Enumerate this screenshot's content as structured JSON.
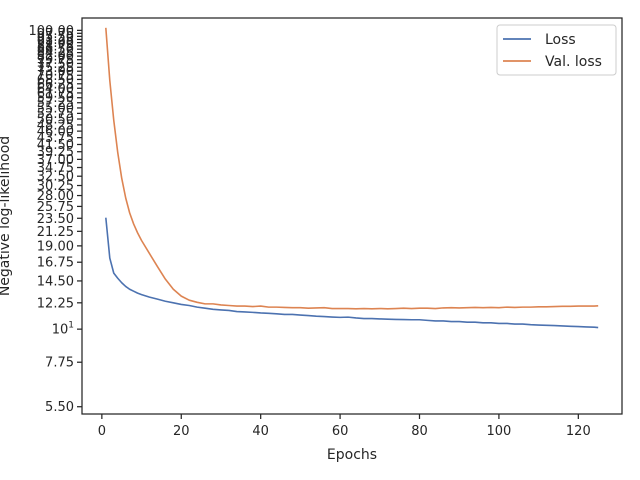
{
  "chart_data": {
    "type": "line",
    "title": "",
    "xlabel": "Epochs",
    "ylabel": "Negative log-likelihood",
    "yscale": "log",
    "xlim": [
      -5,
      131
    ],
    "ylim": [
      5.2,
      110
    ],
    "grid": false,
    "legend_placement": "top-right",
    "x_ticks": [
      0,
      20,
      40,
      60,
      80,
      100,
      120
    ],
    "y_ticks": [
      {
        "value": 5.5,
        "label": "5.50"
      },
      {
        "value": 7.75,
        "label": "7.75"
      },
      {
        "value": 10,
        "label": "10^1"
      },
      {
        "value": 12.25,
        "label": "12.25"
      },
      {
        "value": 14.5,
        "label": "14.50"
      },
      {
        "value": 16.75,
        "label": "16.75"
      },
      {
        "value": 19.0,
        "label": "19.00"
      },
      {
        "value": 21.25,
        "label": "21.25"
      },
      {
        "value": 23.5,
        "label": "23.50"
      },
      {
        "value": 25.75,
        "label": "25.75"
      },
      {
        "value": 28.0,
        "label": "28.00"
      },
      {
        "value": 30.25,
        "label": "30.25"
      },
      {
        "value": 32.5,
        "label": "32.50"
      },
      {
        "value": 34.75,
        "label": "34.75"
      },
      {
        "value": 37.0,
        "label": "37.00"
      },
      {
        "value": 39.25,
        "label": "39.25"
      },
      {
        "value": 41.5,
        "label": "41.50"
      },
      {
        "value": 43.75,
        "label": "43.75"
      },
      {
        "value": 46.0,
        "label": "46.00"
      },
      {
        "value": 48.25,
        "label": "48.25"
      },
      {
        "value": 50.5,
        "label": "50.50"
      },
      {
        "value": 52.75,
        "label": "52.75"
      },
      {
        "value": 55.0,
        "label": "55.00"
      },
      {
        "value": 57.25,
        "label": "57.25"
      },
      {
        "value": 59.5,
        "label": "59.50"
      },
      {
        "value": 61.75,
        "label": "61.75"
      },
      {
        "value": 64.0,
        "label": "64.00"
      },
      {
        "value": 66.25,
        "label": "66.25"
      },
      {
        "value": 68.5,
        "label": "68.50"
      },
      {
        "value": 70.75,
        "label": "70.75"
      },
      {
        "value": 73.0,
        "label": "73.00"
      },
      {
        "value": 75.25,
        "label": "75.25"
      },
      {
        "value": 77.5,
        "label": "77.50"
      },
      {
        "value": 79.75,
        "label": "79.75"
      },
      {
        "value": 82.0,
        "label": "82.00"
      },
      {
        "value": 84.25,
        "label": "84.25"
      },
      {
        "value": 86.5,
        "label": "86.50"
      },
      {
        "value": 88.75,
        "label": "88.75"
      },
      {
        "value": 91.0,
        "label": "91.00"
      },
      {
        "value": 93.25,
        "label": "93.25"
      },
      {
        "value": 95.5,
        "label": "95.50"
      },
      {
        "value": 97.75,
        "label": "97.75"
      },
      {
        "value": 100.0,
        "label": "100.00"
      }
    ],
    "series": [
      {
        "name": "Loss",
        "color": "#4c72b0",
        "points": [
          [
            1,
            23.6
          ],
          [
            2,
            17.3
          ],
          [
            3,
            15.4
          ],
          [
            4,
            14.8
          ],
          [
            5,
            14.3
          ],
          [
            6,
            13.9
          ],
          [
            7,
            13.6
          ],
          [
            8,
            13.4
          ],
          [
            9,
            13.2
          ],
          [
            10,
            13.05
          ],
          [
            12,
            12.8
          ],
          [
            14,
            12.6
          ],
          [
            16,
            12.4
          ],
          [
            18,
            12.25
          ],
          [
            20,
            12.1
          ],
          [
            22,
            12.0
          ],
          [
            24,
            11.85
          ],
          [
            26,
            11.75
          ],
          [
            28,
            11.65
          ],
          [
            30,
            11.6
          ],
          [
            32,
            11.55
          ],
          [
            34,
            11.45
          ],
          [
            36,
            11.42
          ],
          [
            38,
            11.38
          ],
          [
            40,
            11.33
          ],
          [
            42,
            11.3
          ],
          [
            44,
            11.25
          ],
          [
            46,
            11.2
          ],
          [
            48,
            11.2
          ],
          [
            50,
            11.15
          ],
          [
            52,
            11.1
          ],
          [
            54,
            11.05
          ],
          [
            56,
            11.02
          ],
          [
            58,
            10.98
          ],
          [
            60,
            10.95
          ],
          [
            62,
            10.97
          ],
          [
            64,
            10.9
          ],
          [
            66,
            10.85
          ],
          [
            68,
            10.85
          ],
          [
            70,
            10.82
          ],
          [
            72,
            10.8
          ],
          [
            74,
            10.78
          ],
          [
            76,
            10.77
          ],
          [
            78,
            10.75
          ],
          [
            80,
            10.75
          ],
          [
            82,
            10.7
          ],
          [
            84,
            10.65
          ],
          [
            86,
            10.65
          ],
          [
            88,
            10.6
          ],
          [
            90,
            10.6
          ],
          [
            92,
            10.55
          ],
          [
            94,
            10.55
          ],
          [
            96,
            10.5
          ],
          [
            98,
            10.5
          ],
          [
            100,
            10.45
          ],
          [
            102,
            10.45
          ],
          [
            104,
            10.4
          ],
          [
            106,
            10.4
          ],
          [
            108,
            10.35
          ],
          [
            110,
            10.32
          ],
          [
            112,
            10.3
          ],
          [
            114,
            10.28
          ],
          [
            116,
            10.25
          ],
          [
            118,
            10.22
          ],
          [
            120,
            10.2
          ],
          [
            122,
            10.17
          ],
          [
            124,
            10.15
          ],
          [
            125,
            10.12
          ]
        ]
      },
      {
        "name": "Val. loss",
        "color": "#dd8452",
        "points": [
          [
            1,
            102.0
          ],
          [
            2,
            68.0
          ],
          [
            3,
            50.0
          ],
          [
            4,
            39.0
          ],
          [
            5,
            32.0
          ],
          [
            6,
            27.5
          ],
          [
            7,
            24.5
          ],
          [
            8,
            22.5
          ],
          [
            9,
            21.0
          ],
          [
            10,
            19.8
          ],
          [
            12,
            17.9
          ],
          [
            14,
            16.2
          ],
          [
            16,
            14.7
          ],
          [
            18,
            13.6
          ],
          [
            20,
            12.9
          ],
          [
            22,
            12.5
          ],
          [
            24,
            12.3
          ],
          [
            26,
            12.15
          ],
          [
            28,
            12.15
          ],
          [
            30,
            12.05
          ],
          [
            32,
            12.0
          ],
          [
            34,
            11.95
          ],
          [
            36,
            11.95
          ],
          [
            38,
            11.9
          ],
          [
            40,
            11.95
          ],
          [
            42,
            11.85
          ],
          [
            44,
            11.85
          ],
          [
            46,
            11.82
          ],
          [
            48,
            11.8
          ],
          [
            50,
            11.8
          ],
          [
            52,
            11.75
          ],
          [
            54,
            11.78
          ],
          [
            56,
            11.8
          ],
          [
            58,
            11.72
          ],
          [
            60,
            11.72
          ],
          [
            62,
            11.72
          ],
          [
            64,
            11.7
          ],
          [
            66,
            11.72
          ],
          [
            68,
            11.7
          ],
          [
            70,
            11.72
          ],
          [
            72,
            11.7
          ],
          [
            74,
            11.72
          ],
          [
            76,
            11.75
          ],
          [
            78,
            11.72
          ],
          [
            80,
            11.75
          ],
          [
            82,
            11.75
          ],
          [
            84,
            11.72
          ],
          [
            86,
            11.78
          ],
          [
            88,
            11.8
          ],
          [
            90,
            11.78
          ],
          [
            92,
            11.8
          ],
          [
            94,
            11.82
          ],
          [
            96,
            11.8
          ],
          [
            98,
            11.82
          ],
          [
            100,
            11.8
          ],
          [
            102,
            11.85
          ],
          [
            104,
            11.82
          ],
          [
            106,
            11.85
          ],
          [
            108,
            11.85
          ],
          [
            110,
            11.88
          ],
          [
            112,
            11.88
          ],
          [
            114,
            11.9
          ],
          [
            116,
            11.92
          ],
          [
            118,
            11.92
          ],
          [
            120,
            11.95
          ],
          [
            122,
            11.95
          ],
          [
            124,
            11.95
          ],
          [
            125,
            11.97
          ]
        ]
      }
    ]
  }
}
